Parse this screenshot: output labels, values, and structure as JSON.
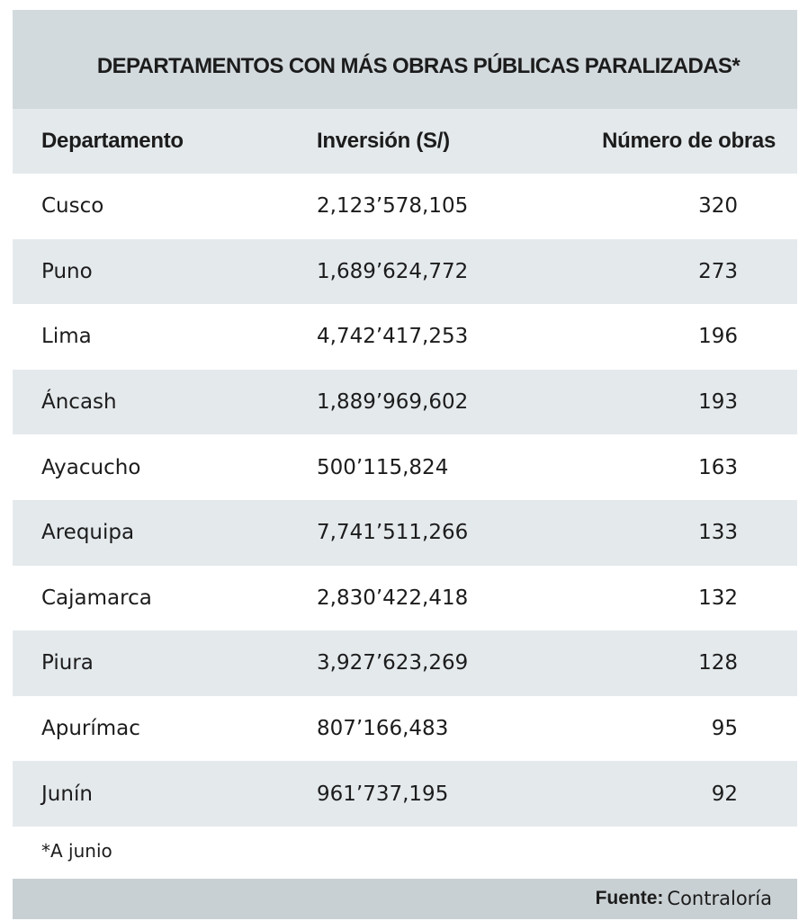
{
  "title": "DEPARTAMENTOS CON MÁS OBRAS PÚBLICAS PARALIZADAS*",
  "headers": {
    "departamento": "Departamento",
    "inversion": "Inversión (S/)",
    "numero": "Número de obras"
  },
  "rows": [
    {
      "departamento": "Cusco",
      "inversion": "2,123’578,105",
      "numero": "320"
    },
    {
      "departamento": "Puno",
      "inversion": "1,689’624,772",
      "numero": "273"
    },
    {
      "departamento": "Lima",
      "inversion": "4,742’417,253",
      "numero": "196"
    },
    {
      "departamento": "Áncash",
      "inversion": "1,889’969,602",
      "numero": "193"
    },
    {
      "departamento": "Ayacucho",
      "inversion": "500’115,824",
      "numero": "163"
    },
    {
      "departamento": "Arequipa",
      "inversion": "7,741’511,266",
      "numero": "133"
    },
    {
      "departamento": "Cajamarca",
      "inversion": "2,830’422,418",
      "numero": "132"
    },
    {
      "departamento": "Piura",
      "inversion": "3,927’623,269",
      "numero": "128"
    },
    {
      "departamento": "Apurímac",
      "inversion": "807’166,483",
      "numero": "95"
    },
    {
      "departamento": "Junín",
      "inversion": "961’737,195",
      "numero": "92"
    }
  ],
  "footnote": "*A junio",
  "source": {
    "label": "Fuente:",
    "value": "Contraloría"
  },
  "chart_data": {
    "type": "table",
    "title": "DEPARTAMENTOS CON MÁS OBRAS PÚBLICAS PARALIZADAS*",
    "columns": [
      "Departamento",
      "Inversión (S/)",
      "Número de obras"
    ],
    "rows": [
      [
        "Cusco",
        "2,123’578,105",
        320
      ],
      [
        "Puno",
        "1,689’624,772",
        273
      ],
      [
        "Lima",
        "4,742’417,253",
        196
      ],
      [
        "Áncash",
        "1,889’969,602",
        193
      ],
      [
        "Ayacucho",
        "500’115,824",
        163
      ],
      [
        "Arequipa",
        "7,741’511,266",
        133
      ],
      [
        "Cajamarca",
        "2,830’422,418",
        132
      ],
      [
        "Piura",
        "3,927’623,269",
        128
      ],
      [
        "Apurímac",
        "807’166,483",
        95
      ],
      [
        "Junín",
        "961’737,195",
        92
      ]
    ]
  }
}
